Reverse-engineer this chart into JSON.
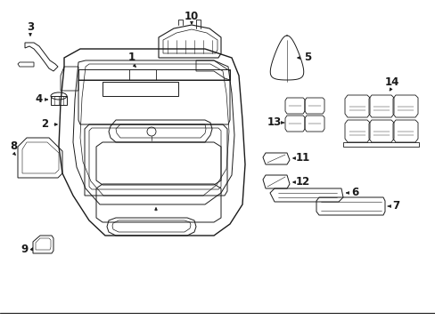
{
  "background_color": "#ffffff",
  "line_color": "#1a1a1a",
  "figsize": [
    4.89,
    3.6
  ],
  "dpi": 100,
  "label_size": 8.5,
  "border_bottom": true
}
